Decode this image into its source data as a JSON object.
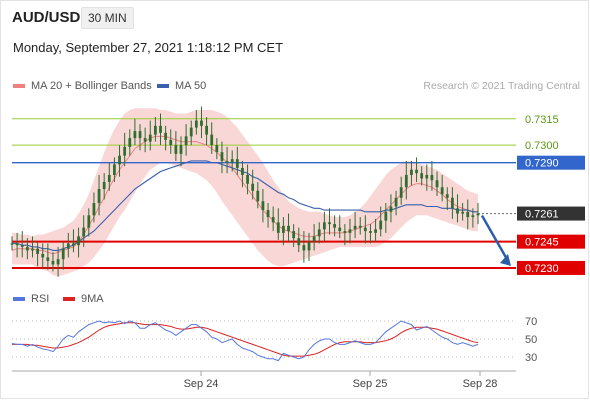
{
  "header": {
    "symbol": "AUD/USD",
    "interval": "30 MIN",
    "datetime": "Monday, September 27, 2021 1:18:12 PM CET"
  },
  "legend": {
    "ma20_label": "MA 20 + Bollinger Bands",
    "ma50_label": "MA 50",
    "rsi_label": "RSI",
    "ma9_label": "9MA",
    "copyright": "Research © 2021 Trading Central"
  },
  "colors": {
    "bollinger_fill": "#f7c9c9",
    "ma20": "#f08080",
    "ma50": "#3b5fae",
    "resistance_green": "#9acd32",
    "resistance_blue": "#3366cc",
    "support_red": "#e00000",
    "candle": "#2f6e2f",
    "rsi": "#5577dd",
    "rsi_ma": "#dd2222",
    "arrow": "#2a5ea8"
  },
  "chart_data": [
    {
      "type": "candlestick",
      "title": "AUD/USD",
      "x_ticks": [
        "Sep 24",
        "Sep 25",
        "Sep 28"
      ],
      "ylim": [
        0.7222,
        0.7328
      ],
      "levels": [
        {
          "value": 0.7315,
          "label": "0.7315",
          "kind": "resistance",
          "style": "thin-green"
        },
        {
          "value": 0.73,
          "label": "0.7300",
          "kind": "resistance",
          "style": "thin-green"
        },
        {
          "value": 0.729,
          "label": "0.7290",
          "kind": "pivot",
          "style": "blue"
        },
        {
          "value": 0.7261,
          "label": "0.7261",
          "kind": "last-price",
          "style": "dotted"
        },
        {
          "value": 0.7245,
          "label": "0.7245",
          "kind": "support",
          "style": "red"
        },
        {
          "value": 0.723,
          "label": "0.7230",
          "kind": "support",
          "style": "red"
        }
      ],
      "close_series": [
        0.7244,
        0.7243,
        0.7242,
        0.724,
        0.7241,
        0.7238,
        0.7236,
        0.7234,
        0.7232,
        0.7235,
        0.7241,
        0.7244,
        0.7243,
        0.7248,
        0.7253,
        0.726,
        0.7267,
        0.7275,
        0.7279,
        0.7283,
        0.7289,
        0.7294,
        0.7299,
        0.7304,
        0.7308,
        0.7304,
        0.7302,
        0.7306,
        0.7311,
        0.7307,
        0.7303,
        0.73,
        0.7295,
        0.73,
        0.7305,
        0.731,
        0.7314,
        0.7311,
        0.7306,
        0.73,
        0.7296,
        0.7291,
        0.729,
        0.7292,
        0.7287,
        0.7283,
        0.7278,
        0.7274,
        0.7268,
        0.7263,
        0.7259,
        0.7256,
        0.725,
        0.7254,
        0.7251,
        0.7247,
        0.7243,
        0.724,
        0.7245,
        0.7248,
        0.7252,
        0.7256,
        0.7255,
        0.7253,
        0.7251,
        0.725,
        0.7252,
        0.7254,
        0.7253,
        0.7251,
        0.725,
        0.7252,
        0.7257,
        0.7262,
        0.7265,
        0.727,
        0.7276,
        0.7283,
        0.7286,
        0.7284,
        0.7281,
        0.7283,
        0.728,
        0.7276,
        0.7272,
        0.727,
        0.7264,
        0.7261,
        0.7262,
        0.7259,
        0.726,
        0.7261
      ],
      "ma20_series": [
        0.724,
        0.7241,
        0.7241,
        0.7241,
        0.7241,
        0.724,
        0.724,
        0.7239,
        0.7238,
        0.7239,
        0.724,
        0.7241,
        0.7242,
        0.7245,
        0.7249,
        0.7254,
        0.7259,
        0.7265,
        0.727,
        0.7276,
        0.7281,
        0.7286,
        0.729,
        0.7294,
        0.7298,
        0.73,
        0.7302,
        0.7304,
        0.7305,
        0.7305,
        0.7305,
        0.7304,
        0.7303,
        0.7302,
        0.7302,
        0.7302,
        0.7302,
        0.7301,
        0.73,
        0.7298,
        0.7296,
        0.7293,
        0.729,
        0.7287,
        0.7283,
        0.7279,
        0.7275,
        0.7271,
        0.7267,
        0.7263,
        0.726,
        0.7257,
        0.7254,
        0.7252,
        0.7251,
        0.725,
        0.7249,
        0.7248,
        0.7248,
        0.7248,
        0.7249,
        0.725,
        0.725,
        0.725,
        0.725,
        0.725,
        0.7251,
        0.7252,
        0.7253,
        0.7254,
        0.7255,
        0.7257,
        0.726,
        0.7263,
        0.7266,
        0.7269,
        0.7272,
        0.7275,
        0.7277,
        0.7278,
        0.7278,
        0.7277,
        0.7276,
        0.7274,
        0.7272,
        0.7269,
        0.7267,
        0.7265,
        0.7264,
        0.7263,
        0.7262,
        0.7262
      ],
      "ma50_series": [
        0.7244,
        0.7244,
        0.7243,
        0.7243,
        0.7242,
        0.7242,
        0.7241,
        0.7241,
        0.724,
        0.724,
        0.7241,
        0.7242,
        0.7243,
        0.7245,
        0.7247,
        0.7249,
        0.7251,
        0.7254,
        0.7257,
        0.726,
        0.7263,
        0.7266,
        0.7269,
        0.7272,
        0.7275,
        0.7277,
        0.7279,
        0.7281,
        0.7283,
        0.7285,
        0.7286,
        0.7287,
        0.7288,
        0.7289,
        0.729,
        0.7291,
        0.7291,
        0.7291,
        0.7291,
        0.729,
        0.729,
        0.7289,
        0.7288,
        0.7287,
        0.7286,
        0.7285,
        0.7284,
        0.7282,
        0.7281,
        0.7279,
        0.7277,
        0.7275,
        0.7273,
        0.7272,
        0.727,
        0.7269,
        0.7267,
        0.7266,
        0.7265,
        0.7264,
        0.7264,
        0.7263,
        0.7263,
        0.7263,
        0.7263,
        0.7263,
        0.7263,
        0.7263,
        0.7263,
        0.7262,
        0.7262,
        0.7262,
        0.7262,
        0.7263,
        0.7263,
        0.7264,
        0.7265,
        0.7266,
        0.7266,
        0.7266,
        0.7266,
        0.7265,
        0.7265,
        0.7265,
        0.7264,
        0.7264,
        0.7264,
        0.7263,
        0.7263,
        0.7263,
        0.7262,
        0.7262
      ],
      "bollinger_upper": [
        0.725,
        0.725,
        0.7249,
        0.7249,
        0.7248,
        0.7249,
        0.7249,
        0.725,
        0.7251,
        0.7252,
        0.7253,
        0.7255,
        0.7257,
        0.7261,
        0.7266,
        0.7272,
        0.728,
        0.7288,
        0.7296,
        0.7303,
        0.7309,
        0.7314,
        0.7318,
        0.732,
        0.7321,
        0.7321,
        0.7321,
        0.7321,
        0.7321,
        0.732,
        0.732,
        0.7319,
        0.7318,
        0.7318,
        0.7318,
        0.7319,
        0.732,
        0.732,
        0.732,
        0.732,
        0.7319,
        0.7318,
        0.7316,
        0.7313,
        0.731,
        0.7306,
        0.7302,
        0.7298,
        0.7294,
        0.729,
        0.7285,
        0.728,
        0.7276,
        0.7272,
        0.7268,
        0.7266,
        0.7264,
        0.7263,
        0.7262,
        0.7262,
        0.7262,
        0.7261,
        0.726,
        0.7259,
        0.7259,
        0.7259,
        0.726,
        0.7262,
        0.7264,
        0.7267,
        0.7271,
        0.7275,
        0.7279,
        0.7283,
        0.7286,
        0.7288,
        0.729,
        0.7291,
        0.7291,
        0.729,
        0.7289,
        0.7288,
        0.7287,
        0.7286,
        0.7284,
        0.7282,
        0.728,
        0.7278,
        0.7276,
        0.7274,
        0.7273,
        0.7272
      ],
      "bollinger_lower": [
        0.7232,
        0.7232,
        0.7232,
        0.7232,
        0.7232,
        0.723,
        0.7229,
        0.7228,
        0.7226,
        0.7225,
        0.7226,
        0.7227,
        0.7228,
        0.7229,
        0.7231,
        0.7233,
        0.7236,
        0.724,
        0.7244,
        0.7249,
        0.7254,
        0.7259,
        0.7263,
        0.7268,
        0.7273,
        0.7278,
        0.7282,
        0.7286,
        0.7288,
        0.729,
        0.729,
        0.7289,
        0.7288,
        0.7287,
        0.7286,
        0.7285,
        0.7284,
        0.7282,
        0.728,
        0.7277,
        0.7273,
        0.7268,
        0.7264,
        0.726,
        0.7256,
        0.7252,
        0.7248,
        0.7244,
        0.724,
        0.7237,
        0.7234,
        0.7232,
        0.7231,
        0.7231,
        0.7232,
        0.7233,
        0.7234,
        0.7235,
        0.7236,
        0.7237,
        0.7238,
        0.7239,
        0.724,
        0.7241,
        0.7242,
        0.7242,
        0.7242,
        0.7242,
        0.7242,
        0.7242,
        0.7242,
        0.7242,
        0.7243,
        0.7245,
        0.7247,
        0.725,
        0.7253,
        0.7256,
        0.7258,
        0.726,
        0.726,
        0.726,
        0.7259,
        0.7258,
        0.7257,
        0.7256,
        0.7255,
        0.7254,
        0.7253,
        0.7252,
        0.7251,
        0.7251
      ],
      "forecast_arrow": {
        "from": 0.7261,
        "to": 0.723
      }
    },
    {
      "type": "line",
      "title": "RSI",
      "y_ticks": [
        70,
        50,
        30
      ],
      "ylim": [
        20,
        80
      ],
      "series": [
        {
          "name": "RSI",
          "values": [
            45,
            44,
            44,
            42,
            44,
            41,
            39,
            38,
            36,
            42,
            50,
            54,
            52,
            58,
            62,
            66,
            68,
            70,
            68,
            69,
            68,
            70,
            67,
            70,
            68,
            62,
            62,
            66,
            68,
            64,
            60,
            58,
            54,
            58,
            62,
            66,
            66,
            62,
            58,
            52,
            50,
            46,
            48,
            50,
            44,
            40,
            38,
            36,
            32,
            30,
            28,
            28,
            26,
            34,
            32,
            30,
            28,
            30,
            38,
            44,
            48,
            50,
            50,
            46,
            44,
            44,
            46,
            48,
            46,
            44,
            44,
            46,
            52,
            58,
            62,
            66,
            70,
            68,
            66,
            60,
            62,
            64,
            60,
            56,
            52,
            50,
            46,
            44,
            46,
            44,
            42,
            44
          ]
        },
        {
          "name": "9MA",
          "values": [
            44,
            44,
            44,
            44,
            43,
            43,
            42,
            41,
            40,
            40,
            41,
            42,
            44,
            46,
            49,
            52,
            56,
            60,
            63,
            65,
            66,
            67,
            68,
            68,
            68,
            67,
            66,
            66,
            66,
            66,
            65,
            64,
            62,
            61,
            61,
            62,
            63,
            63,
            62,
            60,
            58,
            56,
            54,
            52,
            50,
            48,
            46,
            44,
            42,
            40,
            38,
            36,
            34,
            32,
            31,
            31,
            31,
            31,
            32,
            33,
            35,
            38,
            41,
            44,
            46,
            47,
            47,
            47,
            47,
            46,
            46,
            46,
            47,
            48,
            50,
            53,
            57,
            60,
            62,
            63,
            63,
            63,
            62,
            61,
            59,
            57,
            55,
            53,
            51,
            49,
            47,
            46
          ]
        }
      ]
    }
  ]
}
